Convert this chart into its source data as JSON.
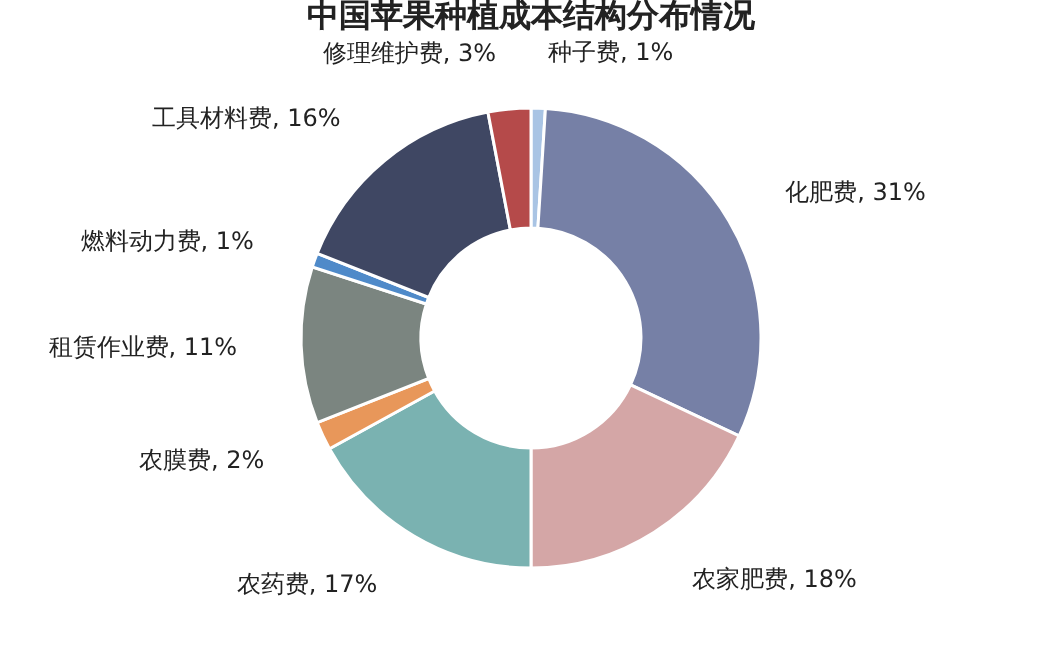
{
  "chart_data": {
    "type": "donut",
    "title": "中国苹果种植成本结构分布情况",
    "categories": [
      "种子费",
      "化肥费",
      "农家肥费",
      "农药费",
      "农膜费",
      "租赁作业费",
      "燃料动力费",
      "工具材料费",
      "修理维护费"
    ],
    "values": [
      1,
      31,
      18,
      17,
      2,
      11,
      1,
      16,
      3
    ],
    "value_labels": [
      "1%",
      "31%",
      "18%",
      "17%",
      "2%",
      "11%",
      "1%",
      "16%",
      "3%"
    ],
    "colors": [
      "#a9c4e4",
      "#7680a6",
      "#d4a6a6",
      "#7ab2b1",
      "#e8975a",
      "#7b8580",
      "#4f8ac9",
      "#3f4763",
      "#b54a4a"
    ],
    "legend": false
  }
}
